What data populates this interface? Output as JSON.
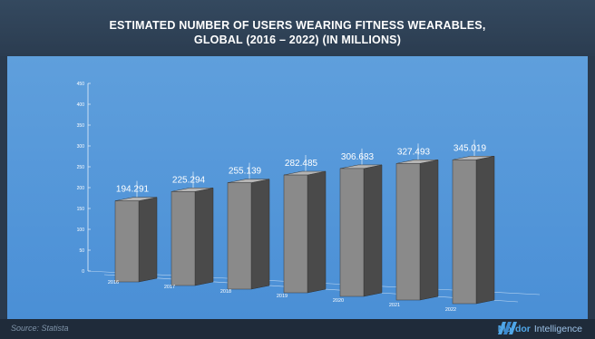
{
  "header": {
    "title_line1": "ESTIMATED NUMBER OF USERS WEARING FITNESS WEARABLES,",
    "title_line2": "GLOBAL (2016 – 2022) (IN MILLIONS)"
  },
  "footer": {
    "source": "Source: Statista",
    "brand_name": "Mordor",
    "brand_suffix": " Intelligence"
  },
  "colors": {
    "background": "#2a3a4d",
    "panel": "#4f93d8",
    "bar_front": "#8a8a8a",
    "bar_side": "#4a4a4a",
    "bar_top": "#b5b5b5",
    "brand": "#4fa6e8"
  },
  "chart_data": {
    "type": "bar",
    "categories": [
      "2016",
      "2017",
      "2018",
      "2019",
      "2020",
      "2021",
      "2022"
    ],
    "values": [
      194.291,
      225.294,
      255.139,
      282.485,
      306.683,
      327.493,
      345.019
    ],
    "value_labels": [
      "194.291",
      "225.294",
      "255.139",
      "282.485",
      "306.683",
      "327.493",
      "345.019"
    ],
    "yticks": [
      "0",
      "50",
      "100",
      "150",
      "200",
      "250",
      "300",
      "350",
      "400",
      "450"
    ],
    "ylim": [
      0,
      450
    ],
    "title": "ESTIMATED NUMBER OF USERS WEARING FITNESS WEARABLES, GLOBAL (2016 – 2022) (IN MILLIONS)",
    "xlabel": "",
    "ylabel": "",
    "grid": false
  }
}
